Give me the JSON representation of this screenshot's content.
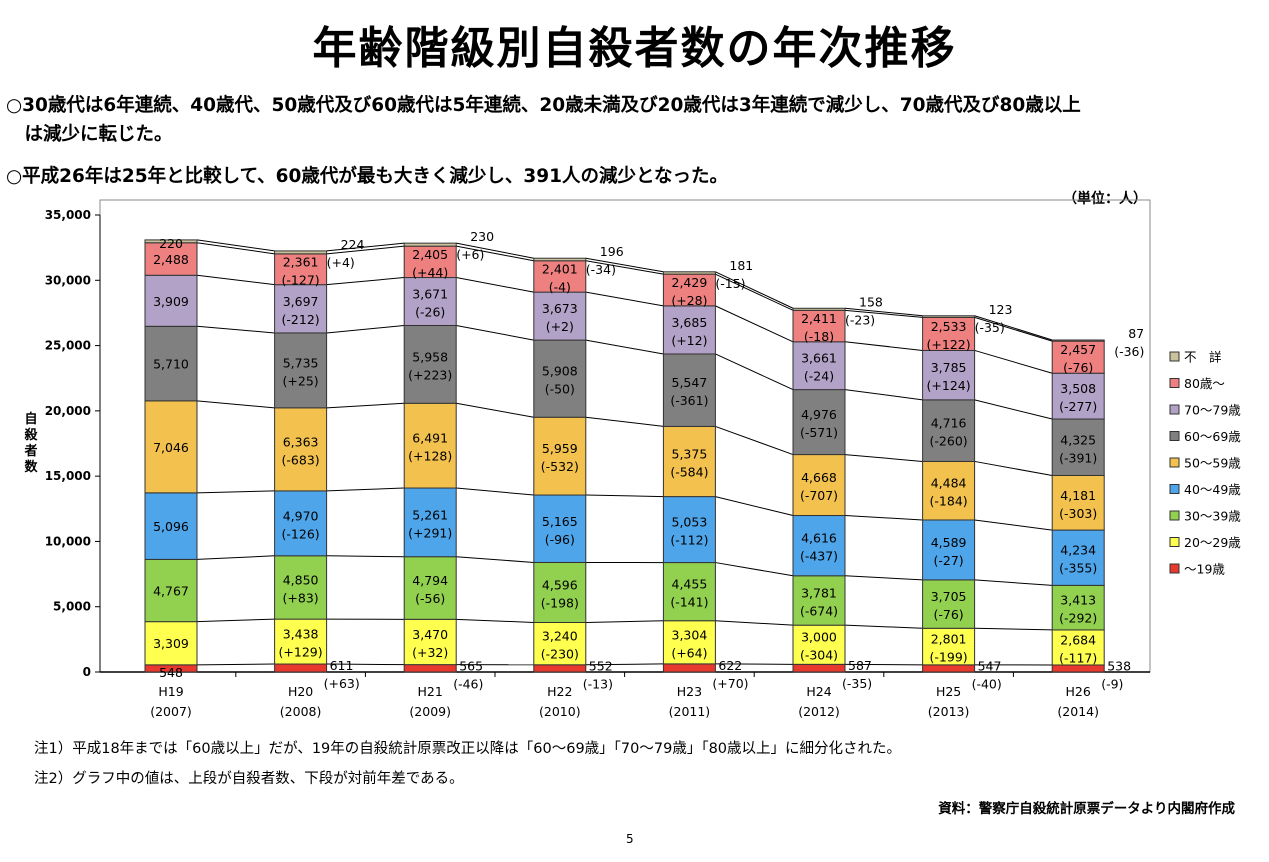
{
  "title": "年齢階級別自殺者数の年次推移",
  "bullets": [
    "○30歳代は6年連続、40歳代、50歳代及び60歳代は5年連続、20歳未満及び20歳代は3年連続で減少し、70歳代及び80歳以上",
    "　は減少に転じた。",
    "○平成26年は25年と比較して、60歳代が最も大きく減少し、391人の減少となった。"
  ],
  "unit": "（単位：人）",
  "notes": [
    "注1）平成18年までは「60歳以上」だが、19年の自殺統計原票改正以降は「60～69歳」「70～79歳」「80歳以上」に細分化された。",
    "注2）グラフ中の値は、上段が自殺者数、下段が対前年差である。"
  ],
  "source": "資料：警察庁自殺統計原票データより内閣府作成",
  "page_number": "5",
  "chart_data": {
    "type": "bar",
    "stacked": true,
    "ylabel": "自殺者数",
    "ylim": [
      0,
      35000
    ],
    "yticks": [
      0,
      5000,
      10000,
      15000,
      20000,
      25000,
      30000,
      35000
    ],
    "ytick_labels": [
      "0",
      "5,000",
      "10,000",
      "15,000",
      "20,000",
      "25,000",
      "30,000",
      "35,000"
    ],
    "categories": [
      "H19",
      "H20",
      "H21",
      "H22",
      "H23",
      "H24",
      "H25",
      "H26"
    ],
    "category_years": [
      "(2007)",
      "(2008)",
      "(2009)",
      "(2010)",
      "(2011)",
      "(2012)",
      "(2013)",
      "(2014)"
    ],
    "legend_position": "right",
    "grid": false,
    "series": [
      {
        "name": "～19歳",
        "color": "#e8392e",
        "values": [
          548,
          611,
          565,
          552,
          622,
          587,
          547,
          538
        ],
        "diffs": [
          null,
          "(+63)",
          "(-46)",
          "(-13)",
          "(+70)",
          "(-35)",
          "(-40)",
          "(-9)"
        ]
      },
      {
        "name": "20～29歳",
        "color": "#ffff50",
        "values": [
          3309,
          3438,
          3470,
          3240,
          3304,
          3000,
          2801,
          2684
        ],
        "diffs": [
          null,
          "(+129)",
          "(+32)",
          "(-230)",
          "(+64)",
          "(-304)",
          "(-199)",
          "(-117)"
        ]
      },
      {
        "name": "30～39歳",
        "color": "#92d050",
        "values": [
          4767,
          4850,
          4794,
          4596,
          4455,
          3781,
          3705,
          3413
        ],
        "diffs": [
          null,
          "(+83)",
          "(-56)",
          "(-198)",
          "(-141)",
          "(-674)",
          "(-76)",
          "(-292)"
        ]
      },
      {
        "name": "40～49歳",
        "color": "#4ea5ea",
        "values": [
          5096,
          4970,
          5261,
          5165,
          5053,
          4616,
          4589,
          4234
        ],
        "diffs": [
          null,
          "(-126)",
          "(+291)",
          "(-96)",
          "(-112)",
          "(-437)",
          "(-27)",
          "(-355)"
        ]
      },
      {
        "name": "50～59歳",
        "color": "#f2c14e",
        "values": [
          7046,
          6363,
          6491,
          5959,
          5375,
          4668,
          4484,
          4181
        ],
        "diffs": [
          null,
          "(-683)",
          "(+128)",
          "(-532)",
          "(-584)",
          "(-707)",
          "(-184)",
          "(-303)"
        ]
      },
      {
        "name": "60～69歳",
        "color": "#808080",
        "values": [
          5710,
          5735,
          5958,
          5908,
          5547,
          4976,
          4716,
          4325
        ],
        "diffs": [
          null,
          "(+25)",
          "(+223)",
          "(-50)",
          "(-361)",
          "(-571)",
          "(-260)",
          "(-391)"
        ]
      },
      {
        "name": "70～79歳",
        "color": "#b3a2c7",
        "values": [
          3909,
          3697,
          3671,
          3673,
          3685,
          3661,
          3785,
          3508
        ],
        "diffs": [
          null,
          "(-212)",
          "(-26)",
          "(+2)",
          "(+12)",
          "(-24)",
          "(+124)",
          "(-277)"
        ]
      },
      {
        "name": "80歳～",
        "color": "#ee8080",
        "values": [
          2488,
          2361,
          2405,
          2401,
          2429,
          2411,
          2533,
          2457
        ],
        "diffs": [
          null,
          "(-127)",
          "(+44)",
          "(-4)",
          "(+28)",
          "(-18)",
          "(+122)",
          "(-76)"
        ]
      },
      {
        "name": "不　詳",
        "color": "#c9c29c",
        "values": [
          220,
          224,
          230,
          196,
          181,
          158,
          123,
          87
        ],
        "diffs": [
          null,
          "(+4)",
          "(+6)",
          "(-34)",
          "(-15)",
          "(-23)",
          "(-35)",
          "(-36)"
        ]
      }
    ]
  }
}
